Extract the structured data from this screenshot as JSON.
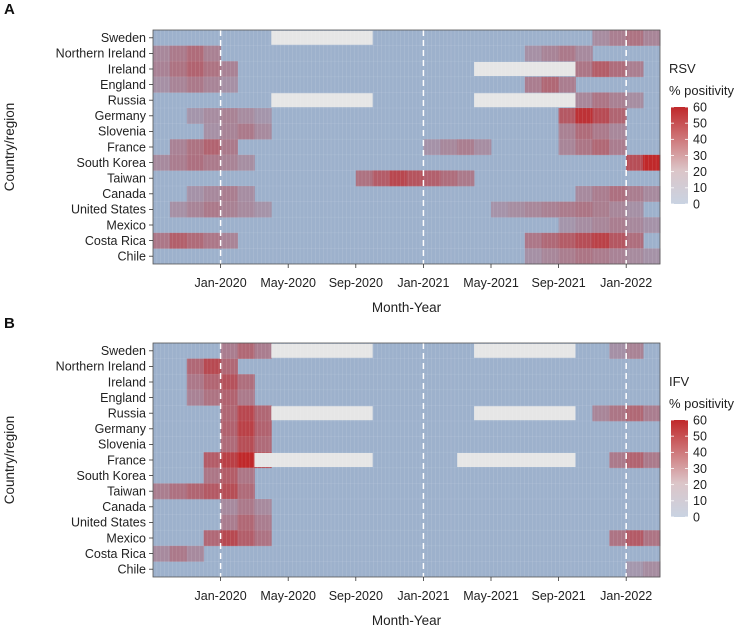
{
  "chart_data": [
    {
      "type": "heatmap",
      "panel_label": "A",
      "legend_title_line1": "RSV",
      "legend_title_line2": "% positivity",
      "xlabel": "Month-Year",
      "ylabel": "Country/region",
      "x_tick_labels": [
        "Jan-2020",
        "May-2020",
        "Sep-2020",
        "Jan-2021",
        "May-2021",
        "Sep-2021",
        "Jan-2022"
      ],
      "x_range": [
        "Sep-2019",
        "Feb-2022"
      ],
      "dashed_reference_lines": [
        "Jan-2020",
        "Jan-2021",
        "Jan-2022"
      ],
      "color_scale": {
        "min": 0,
        "max": 60,
        "ticks": [
          0,
          10,
          20,
          30,
          40,
          50,
          60
        ],
        "low_color": "#9db1cc",
        "high_color": "#c0282a",
        "missing_color": "#e6e6e6"
      },
      "countries": [
        "Sweden",
        "Northern Ireland",
        "Ireland",
        "England",
        "Russia",
        "Germany",
        "Slovenia",
        "France",
        "South Korea",
        "Taiwan",
        "Canada",
        "United States",
        "Mexico",
        "Costa Rica",
        "Chile"
      ],
      "missing_periods": [
        {
          "country": "Sweden",
          "start": "Apr-2020",
          "end": "Sep-2020"
        },
        {
          "country": "Ireland",
          "start": "Apr-2021",
          "end": "Sep-2021"
        },
        {
          "country": "Russia",
          "start": "Apr-2020",
          "end": "Sep-2020"
        },
        {
          "country": "Russia",
          "start": "Apr-2021",
          "end": "Sep-2021"
        }
      ],
      "peaks": [
        {
          "country": "Sweden",
          "start": "Nov-2021",
          "end": "Feb-2022",
          "peak": "Jan-2022",
          "value": 25
        },
        {
          "country": "Northern Ireland",
          "start": "Sep-2019",
          "end": "Dec-2019",
          "peak": "Nov-2019",
          "value": 28
        },
        {
          "country": "Northern Ireland",
          "start": "Jul-2021",
          "end": "Oct-2021",
          "peak": "Sep-2021",
          "value": 22
        },
        {
          "country": "Ireland",
          "start": "Sep-2019",
          "end": "Jan-2020",
          "peak": "Nov-2019",
          "value": 32
        },
        {
          "country": "Ireland",
          "start": "Oct-2021",
          "end": "Jan-2022",
          "peak": "Nov-2021",
          "value": 35
        },
        {
          "country": "England",
          "start": "Sep-2019",
          "end": "Jan-2020",
          "peak": "Nov-2019",
          "value": 22
        },
        {
          "country": "England",
          "start": "Jul-2021",
          "end": "Sep-2021",
          "peak": "Aug-2021",
          "value": 30
        },
        {
          "country": "Russia",
          "start": "Oct-2021",
          "end": "Jan-2022",
          "peak": "Nov-2021",
          "value": 24
        },
        {
          "country": "Germany",
          "start": "Nov-2019",
          "end": "Mar-2020",
          "peak": "Jan-2020",
          "value": 18
        },
        {
          "country": "Germany",
          "start": "Sep-2021",
          "end": "Dec-2021",
          "peak": "Oct-2021",
          "value": 55
        },
        {
          "country": "Slovenia",
          "start": "Dec-2019",
          "end": "Mar-2020",
          "peak": "Feb-2020",
          "value": 22
        },
        {
          "country": "Slovenia",
          "start": "Sep-2021",
          "end": "Dec-2021",
          "peak": "Oct-2021",
          "value": 28
        },
        {
          "country": "France",
          "start": "Oct-2019",
          "end": "Jan-2020",
          "peak": "Dec-2019",
          "value": 32
        },
        {
          "country": "France",
          "start": "Jan-2021",
          "end": "Apr-2021",
          "peak": "Mar-2021",
          "value": 20
        },
        {
          "country": "France",
          "start": "Sep-2021",
          "end": "Dec-2021",
          "peak": "Nov-2021",
          "value": 30
        },
        {
          "country": "South Korea",
          "start": "Sep-2019",
          "end": "Feb-2020",
          "peak": "Nov-2019",
          "value": 26
        },
        {
          "country": "South Korea",
          "start": "Jan-2022",
          "end": "Feb-2022",
          "peak": "Feb-2022",
          "value": 62
        },
        {
          "country": "Taiwan",
          "start": "Sep-2020",
          "end": "Mar-2021",
          "peak": "Nov-2020",
          "value": 45
        },
        {
          "country": "Canada",
          "start": "Nov-2019",
          "end": "Feb-2020",
          "peak": "Jan-2020",
          "value": 20
        },
        {
          "country": "Canada",
          "start": "Oct-2021",
          "end": "Feb-2022",
          "peak": "Dec-2021",
          "value": 26
        },
        {
          "country": "United States",
          "start": "Oct-2019",
          "end": "Mar-2020",
          "peak": "Dec-2019",
          "value": 22
        },
        {
          "country": "United States",
          "start": "May-2021",
          "end": "Jan-2022",
          "peak": "Oct-2021",
          "value": 24
        },
        {
          "country": "Mexico",
          "start": "Sep-2021",
          "end": "Feb-2022",
          "peak": "Dec-2021",
          "value": 20
        },
        {
          "country": "Costa Rica",
          "start": "Sep-2019",
          "end": "Jan-2020",
          "peak": "Oct-2019",
          "value": 34
        },
        {
          "country": "Costa Rica",
          "start": "Jul-2021",
          "end": "Jan-2022",
          "peak": "Nov-2021",
          "value": 48
        },
        {
          "country": "Chile",
          "start": "Jul-2021",
          "end": "Feb-2022",
          "peak": "Oct-2021",
          "value": 24
        }
      ]
    },
    {
      "type": "heatmap",
      "panel_label": "B",
      "legend_title_line1": "IFV",
      "legend_title_line2": "% positivity",
      "xlabel": "Month-Year",
      "ylabel": "Country/region",
      "x_tick_labels": [
        "Jan-2020",
        "May-2020",
        "Sep-2020",
        "Jan-2021",
        "May-2021",
        "Sep-2021",
        "Jan-2022"
      ],
      "x_range": [
        "Sep-2019",
        "Feb-2022"
      ],
      "dashed_reference_lines": [
        "Jan-2020",
        "Jan-2021",
        "Jan-2022"
      ],
      "color_scale": {
        "min": 0,
        "max": 60,
        "ticks": [
          0,
          10,
          20,
          30,
          40,
          50,
          60
        ],
        "low_color": "#9db1cc",
        "high_color": "#c0282a",
        "missing_color": "#e6e6e6"
      },
      "countries": [
        "Sweden",
        "Northern Ireland",
        "Ireland",
        "England",
        "Russia",
        "Germany",
        "Slovenia",
        "France",
        "South Korea",
        "Taiwan",
        "Canada",
        "United States",
        "Mexico",
        "Costa Rica",
        "Chile"
      ],
      "missing_periods": [
        {
          "country": "Sweden",
          "start": "Apr-2020",
          "end": "Sep-2020"
        },
        {
          "country": "Sweden",
          "start": "Apr-2021",
          "end": "Sep-2021"
        },
        {
          "country": "Russia",
          "start": "Apr-2020",
          "end": "Sep-2020"
        },
        {
          "country": "Russia",
          "start": "Apr-2021",
          "end": "Sep-2021"
        },
        {
          "country": "France",
          "start": "Mar-2020",
          "end": "Sep-2020"
        },
        {
          "country": "France",
          "start": "Mar-2021",
          "end": "Sep-2021"
        }
      ],
      "peaks": [
        {
          "country": "Sweden",
          "start": "Jan-2020",
          "end": "Mar-2020",
          "peak": "Feb-2020",
          "value": 30
        },
        {
          "country": "Sweden",
          "start": "Dec-2021",
          "end": "Jan-2022",
          "peak": "Jan-2022",
          "value": 18
        },
        {
          "country": "Northern Ireland",
          "start": "Nov-2019",
          "end": "Jan-2020",
          "peak": "Dec-2019",
          "value": 44
        },
        {
          "country": "Ireland",
          "start": "Nov-2019",
          "end": "Feb-2020",
          "peak": "Jan-2020",
          "value": 40
        },
        {
          "country": "England",
          "start": "Nov-2019",
          "end": "Feb-2020",
          "peak": "Jan-2020",
          "value": 32
        },
        {
          "country": "Russia",
          "start": "Jan-2020",
          "end": "Mar-2020",
          "peak": "Feb-2020",
          "value": 45
        },
        {
          "country": "Russia",
          "start": "Nov-2021",
          "end": "Feb-2022",
          "peak": "Jan-2022",
          "value": 30
        },
        {
          "country": "Germany",
          "start": "Jan-2020",
          "end": "Mar-2020",
          "peak": "Feb-2020",
          "value": 48
        },
        {
          "country": "Slovenia",
          "start": "Jan-2020",
          "end": "Mar-2020",
          "peak": "Feb-2020",
          "value": 42
        },
        {
          "country": "France",
          "start": "Dec-2019",
          "end": "Mar-2020",
          "peak": "Feb-2020",
          "value": 62
        },
        {
          "country": "France",
          "start": "Dec-2021",
          "end": "Feb-2022",
          "peak": "Jan-2022",
          "value": 32
        },
        {
          "country": "South Korea",
          "start": "Dec-2019",
          "end": "Feb-2020",
          "peak": "Jan-2020",
          "value": 35
        },
        {
          "country": "Taiwan",
          "start": "Sep-2019",
          "end": "Feb-2020",
          "peak": "Jan-2020",
          "value": 42
        },
        {
          "country": "Canada",
          "start": "Jan-2020",
          "end": "Mar-2020",
          "peak": "Feb-2020",
          "value": 22
        },
        {
          "country": "United States",
          "start": "Jan-2020",
          "end": "Mar-2020",
          "peak": "Feb-2020",
          "value": 30
        },
        {
          "country": "Mexico",
          "start": "Dec-2019",
          "end": "Mar-2020",
          "peak": "Jan-2020",
          "value": 44
        },
        {
          "country": "Mexico",
          "start": "Dec-2021",
          "end": "Feb-2022",
          "peak": "Jan-2022",
          "value": 36
        },
        {
          "country": "Costa Rica",
          "start": "Sep-2019",
          "end": "Nov-2019",
          "peak": "Oct-2019",
          "value": 22
        },
        {
          "country": "Chile",
          "start": "Jan-2022",
          "end": "Feb-2022",
          "peak": "Feb-2022",
          "value": 14
        }
      ]
    }
  ]
}
